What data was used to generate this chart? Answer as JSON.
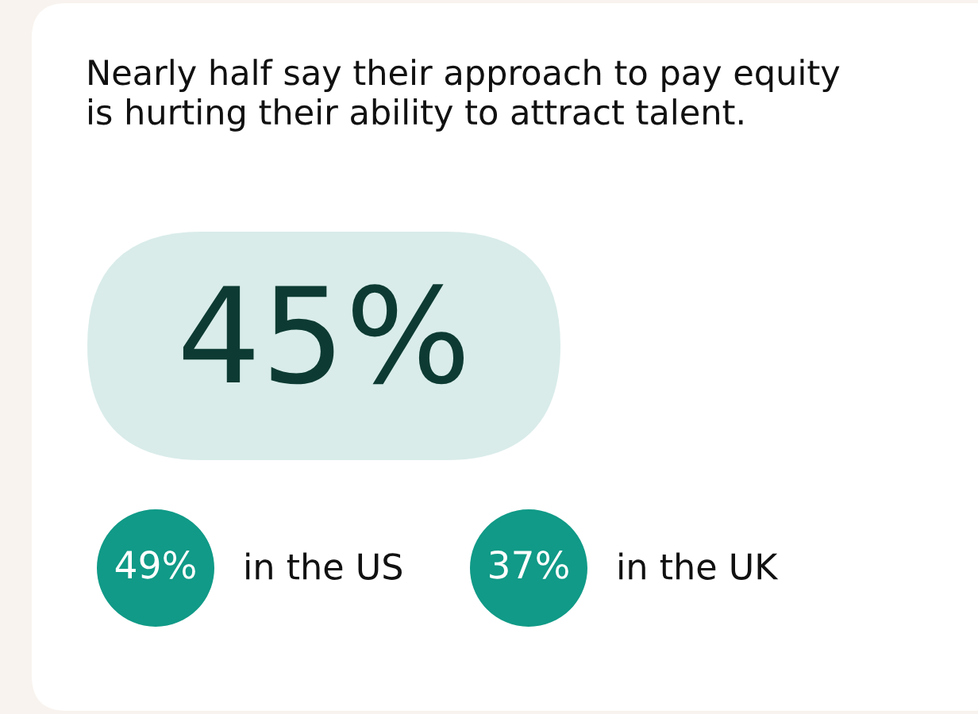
{
  "chart_data": {
    "type": "other",
    "title": "Nearly half say their approach to pay equity\nis hurting their ability to attract talent.",
    "categories": [
      null,
      "in the US",
      "in the UK"
    ],
    "values": [
      45,
      49,
      37
    ],
    "value_labels": [
      "45%",
      "49%",
      "37%"
    ],
    "colors": [
      "#d9ecea",
      "#109a87",
      "#109a87"
    ]
  }
}
